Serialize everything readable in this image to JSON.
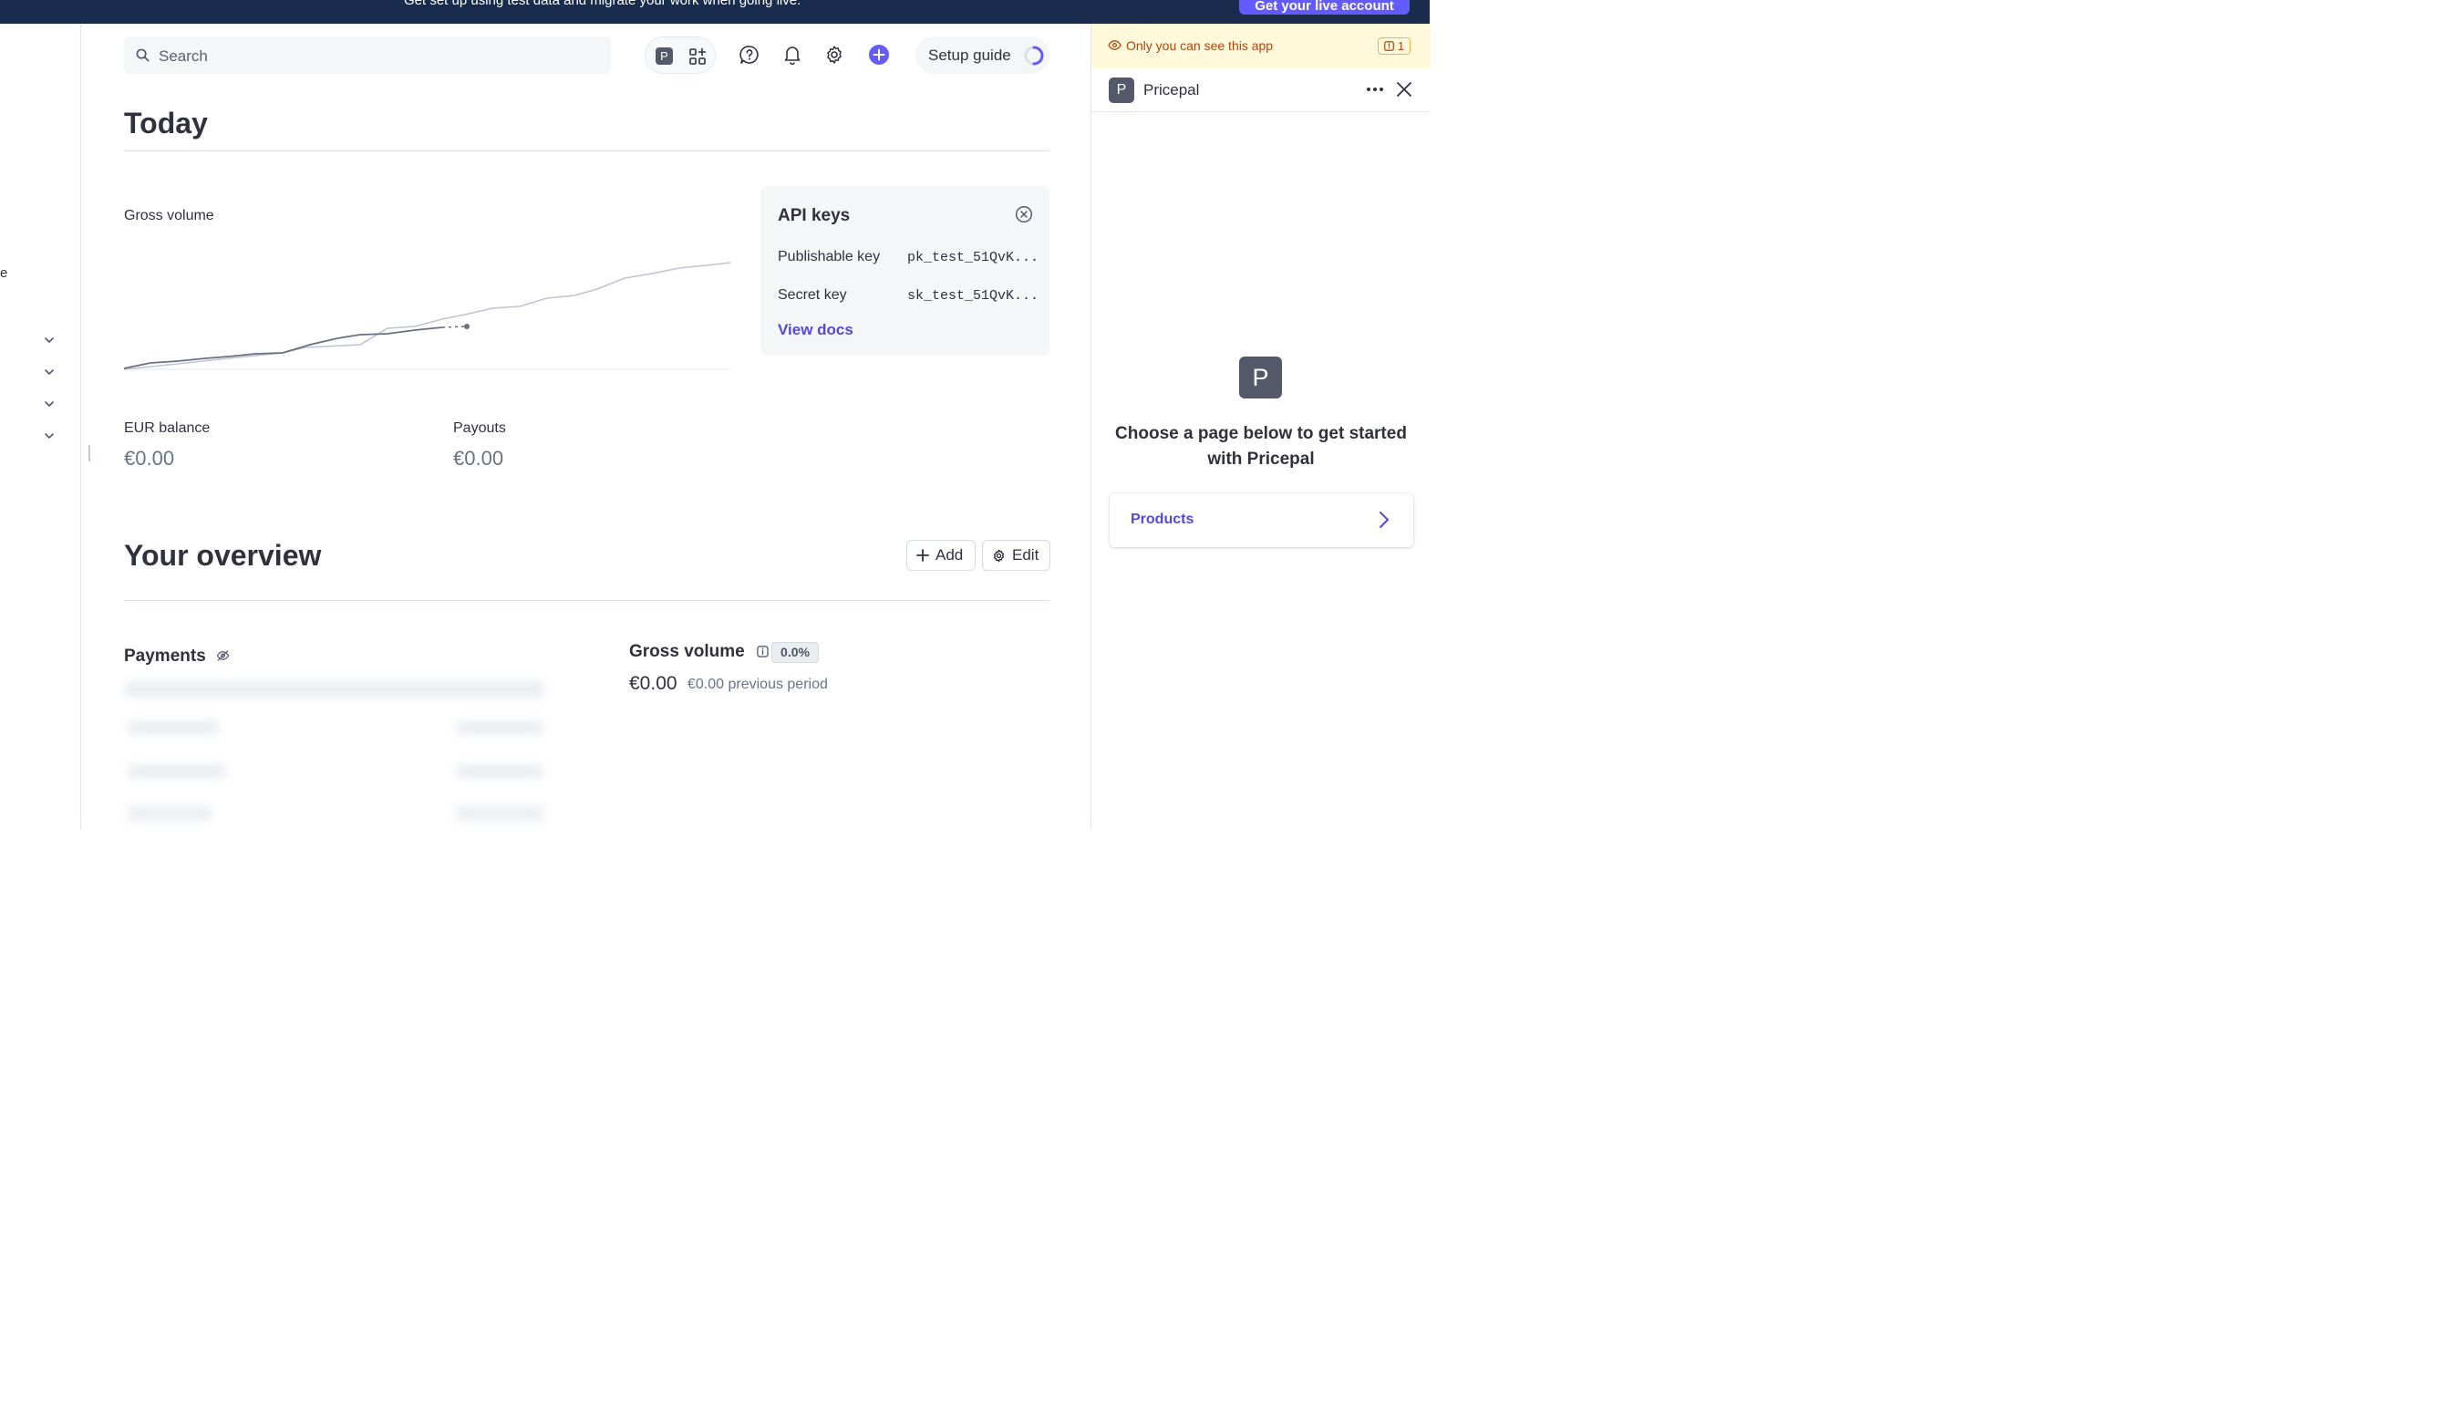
{
  "banner": {
    "message": "Get set up using test data and migrate your work when going live.",
    "cta_label": "Get your live account"
  },
  "sidebar": {
    "fragment": "e"
  },
  "search": {
    "placeholder": "Search"
  },
  "header": {
    "app_badge": "P",
    "setup_guide_label": "Setup guide",
    "icons": [
      "search-icon",
      "apps-grid-icon",
      "help-icon",
      "bell-icon",
      "gear-icon",
      "plus-circle-icon"
    ]
  },
  "today": {
    "title": "Today",
    "gross_volume_label": "Gross volume",
    "eur_balance_label": "EUR balance",
    "eur_balance_value": "€0.00",
    "payouts_label": "Payouts",
    "payouts_value": "€0.00"
  },
  "api_keys": {
    "title": "API keys",
    "publishable_label": "Publishable key",
    "publishable_value": "pk_test_51QvK...",
    "secret_label": "Secret key",
    "secret_value": "sk_test_51QvK...",
    "docs_link": "View docs"
  },
  "overview": {
    "title": "Your overview",
    "add_label": "Add",
    "edit_label": "Edit",
    "payments_title": "Payments",
    "gross_volume_title": "Gross volume",
    "gross_volume_change": "0.0%",
    "gross_volume_value": "€0.00",
    "gross_volume_previous": "€0.00 previous period"
  },
  "app_panel": {
    "notice": "Only you can see this app",
    "notice_count": "1",
    "app_name": "Pricepal",
    "app_initial": "P",
    "prompt": "Choose a page below to get started with Pricepal",
    "products_link": "Products"
  },
  "colors": {
    "accent": "#635bff",
    "link": "#5249e0",
    "banner_bg": "#1a2c4e",
    "notice_bg": "#fef9db",
    "notice_text": "#b3440b"
  }
}
